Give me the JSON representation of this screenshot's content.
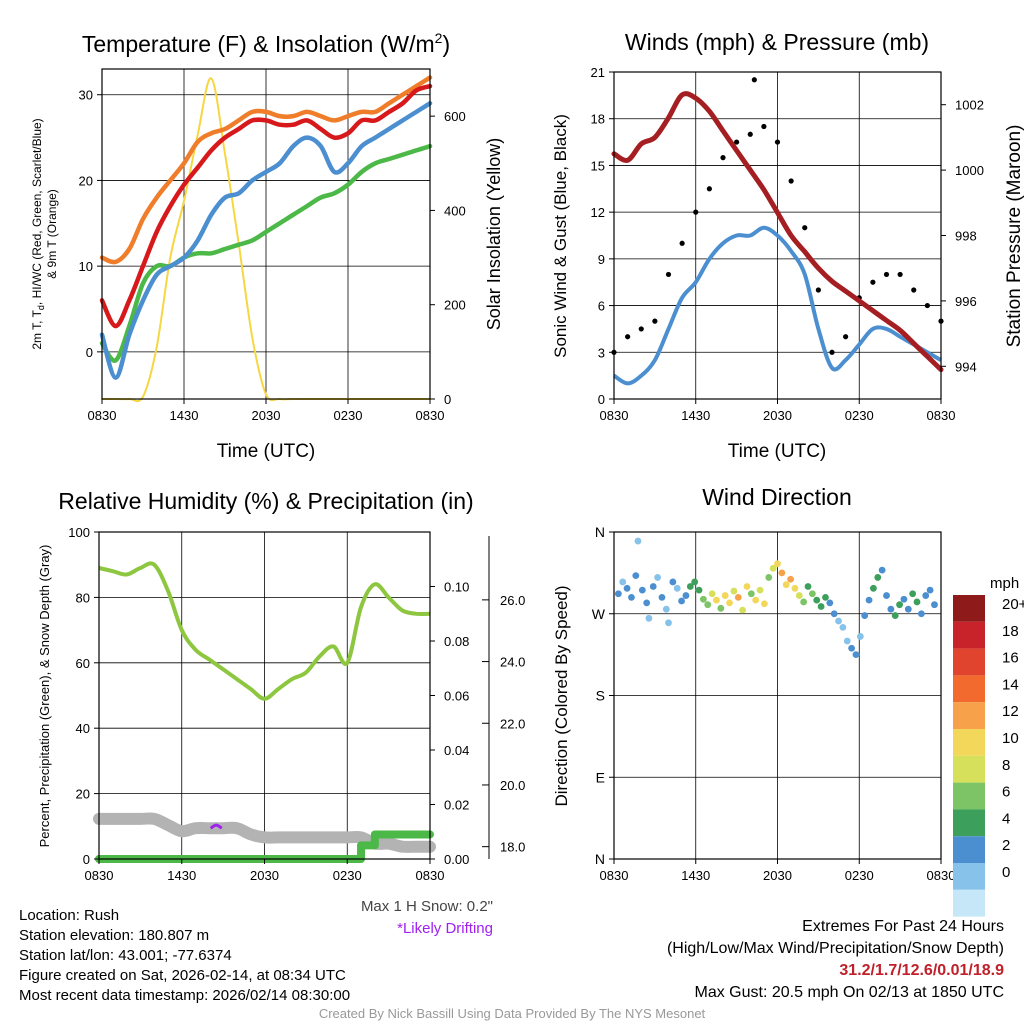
{
  "panels": {
    "temp": {
      "title_prefix": "Temperature (F) & Insolation (W/m",
      "title_sup": "2",
      "title_suffix": ")",
      "ylabel_left_line1": "2m T, T",
      "ylabel_left_sub": "d",
      "ylabel_left_rest": ", HI/WC (Red, Green, Scarlet/Blue)",
      "ylabel_left_line2": "& 9m T (Orange)",
      "ylabel_right": "Solar Insolation (Yellow)",
      "xlabel": "Time (UTC)"
    },
    "winds": {
      "title": "Winds (mph) & Pressure (mb)",
      "ylabel_left": "Sonic Wind & Gust (Blue, Black)",
      "ylabel_right": "Station Pressure (Maroon)",
      "xlabel": "Time (UTC)"
    },
    "rh": {
      "title": "Relative Humidity (%) & Precipitation (in)",
      "ylabel_left": "Percent, Precipitation (Green), & Snow Depth (Gray)"
    },
    "wdir": {
      "title": "Wind Direction",
      "ylabel": "Direction (Colored By Speed)",
      "legend_title": "mph"
    }
  },
  "chart_data": [
    {
      "type": "line",
      "name": "temperature_insolation",
      "x_tick_labels": [
        "0830",
        "1430",
        "2030",
        "0230",
        "0830"
      ],
      "x": [
        0,
        1,
        2,
        3,
        4,
        5,
        6,
        7,
        8,
        9,
        10,
        11,
        12,
        13,
        14,
        15,
        16,
        17,
        18,
        19,
        20,
        21,
        22,
        23,
        24
      ],
      "ylim": [
        -5.5,
        33
      ],
      "y_ticks": [
        0,
        10,
        20,
        30
      ],
      "y2lim": [
        0,
        700
      ],
      "y2_ticks": [
        0,
        200,
        400,
        600
      ],
      "series": [
        {
          "name": "9m T",
          "color": "#f07d2a",
          "values": [
            11,
            10.5,
            12,
            15.5,
            18,
            20,
            22,
            24.5,
            25.5,
            26,
            27,
            28,
            28,
            27.5,
            27.5,
            28,
            27.5,
            27,
            27.5,
            28,
            28,
            29,
            30,
            31,
            32
          ]
        },
        {
          "name": "2m T",
          "color": "#d7191c",
          "values": [
            6,
            3,
            6,
            10,
            14,
            17,
            19.5,
            21.5,
            23.5,
            25,
            26,
            27,
            27,
            26.5,
            26.5,
            27,
            26,
            25,
            25.5,
            27,
            27,
            28,
            29,
            30.5,
            31
          ]
        },
        {
          "name": "Wind chill",
          "color": "#4b8fd0",
          "values": [
            2,
            -3,
            2,
            6,
            9,
            10,
            11,
            13,
            16,
            18,
            18.5,
            20,
            21,
            22,
            24,
            25,
            24,
            21,
            22,
            24,
            25,
            26,
            27,
            28,
            29
          ]
        },
        {
          "name": "Dewpoint",
          "color": "#4cb848",
          "values": [
            1,
            -1,
            3,
            8,
            10,
            10,
            11,
            11.5,
            11.5,
            12,
            12.5,
            13,
            14,
            15,
            16,
            17,
            18,
            18.5,
            19.5,
            21,
            22,
            22.5,
            23,
            23.5,
            24
          ]
        },
        {
          "name": "Solar insolation",
          "color": "#f5d742",
          "axis": "right",
          "values": [
            0,
            0,
            0,
            5,
            110,
            300,
            420,
            560,
            680,
            520,
            330,
            130,
            10,
            0,
            0,
            0,
            0,
            0,
            0,
            0,
            0,
            0,
            0,
            0,
            0
          ]
        }
      ]
    },
    {
      "type": "line",
      "name": "winds_pressure",
      "x_tick_labels": [
        "0830",
        "1430",
        "2030",
        "0230",
        "0830"
      ],
      "x": [
        0,
        1,
        2,
        3,
        4,
        5,
        6,
        7,
        8,
        9,
        10,
        11,
        12,
        13,
        14,
        15,
        16,
        17,
        18,
        19,
        20,
        21,
        22,
        23,
        24
      ],
      "ylim": [
        0,
        21
      ],
      "y_ticks": [
        0,
        3,
        6,
        9,
        12,
        15,
        18,
        21
      ],
      "y2lim": [
        993,
        1003
      ],
      "y2_ticks": [
        994,
        996,
        998,
        1000,
        1002
      ],
      "series": [
        {
          "name": "Sonic wind",
          "color": "#4b8fd0",
          "values": [
            1.5,
            1,
            1.5,
            2.5,
            4.5,
            6.5,
            7.5,
            9,
            10,
            10.5,
            10.5,
            11,
            10.5,
            9.5,
            8,
            4.5,
            2,
            2.5,
            3.5,
            4.5,
            4.5,
            4,
            3.5,
            3,
            2.5
          ]
        },
        {
          "name": "Gust",
          "color": "#000000",
          "values": [
            3,
            4,
            4.5,
            5,
            8,
            10,
            12,
            13.5,
            15.5,
            16.5,
            17,
            17.5,
            16.5,
            14,
            11,
            7,
            3,
            4,
            6.5,
            7.5,
            8,
            8,
            7,
            6,
            5
          ]
        },
        {
          "name": "Station pressure",
          "color": "#a51e22",
          "axis": "right",
          "values": [
            1000.5,
            1000.3,
            1000.8,
            1001,
            1001.6,
            1002.3,
            1002.2,
            1001.8,
            1001.2,
            1000.6,
            1000,
            999.4,
            998.7,
            998,
            997.5,
            997,
            996.6,
            996.3,
            996,
            995.7,
            995.4,
            995.1,
            994.7,
            994.3,
            993.9
          ]
        }
      ],
      "extreme_gust": {
        "label": "20.5",
        "value": 20.5
      }
    },
    {
      "type": "line",
      "name": "rh_precip_snow",
      "x_tick_labels": [
        "0830",
        "1430",
        "2030",
        "0230",
        "0830"
      ],
      "x": [
        0,
        1,
        2,
        3,
        4,
        5,
        6,
        7,
        8,
        9,
        10,
        11,
        12,
        13,
        14,
        15,
        16,
        17,
        18,
        19,
        20,
        21,
        22,
        23,
        24
      ],
      "ylim": [
        0,
        100
      ],
      "y_ticks": [
        0,
        20,
        40,
        60,
        80,
        100
      ],
      "y2lim": [
        0,
        0.12
      ],
      "y2_tick_labels": [
        "0.00",
        "0.02",
        "0.04",
        "0.06",
        "0.08",
        "0.10"
      ],
      "y2_ticks": [
        0,
        0.02,
        0.04,
        0.06,
        0.08,
        0.1
      ],
      "y3lim": [
        17.6,
        28.2
      ],
      "y3_tick_labels": [
        "18.0",
        "20.0",
        "22.0",
        "24.0",
        "26.0"
      ],
      "y3_ticks": [
        18,
        20,
        22,
        24,
        26
      ],
      "series": [
        {
          "name": "Relative humidity",
          "color": "#8dc63f",
          "values": [
            89,
            88,
            87,
            89,
            90,
            82,
            70,
            64,
            61,
            58,
            55,
            52,
            49,
            52,
            55,
            57,
            62,
            65,
            60,
            77,
            84,
            80,
            76,
            75,
            75
          ]
        },
        {
          "name": "Precipitation",
          "color": "#4cb848",
          "axis": "y2",
          "values": [
            0,
            0,
            0,
            0,
            0,
            0,
            0,
            0,
            0,
            0,
            0,
            0,
            0,
            0,
            0,
            0,
            0,
            0,
            0,
            0.005,
            0.009,
            0.009,
            0.009,
            0.009,
            0.009
          ]
        },
        {
          "name": "Snow depth",
          "color": "#b3b3b3",
          "axis": "y3",
          "values": [
            18.9,
            18.9,
            18.9,
            18.9,
            18.9,
            18.7,
            18.5,
            18.6,
            18.6,
            18.6,
            18.6,
            18.4,
            18.3,
            18.3,
            18.3,
            18.3,
            18.3,
            18.3,
            18.3,
            18.3,
            18.1,
            18.1,
            18.0,
            18.0,
            18.0
          ]
        }
      ],
      "drifting": [
        {
          "x": 8.1,
          "y": 18.6
        },
        {
          "x": 8.5,
          "y": 18.7
        },
        {
          "x": 8.9,
          "y": 18.6
        }
      ]
    },
    {
      "type": "scatter",
      "name": "wind_direction",
      "x_tick_labels": [
        "0830",
        "1430",
        "2030",
        "0230",
        "0830"
      ],
      "y_tick_labels": [
        "N",
        "E",
        "S",
        "W",
        "N"
      ],
      "ylim": [
        0,
        360
      ],
      "legend_labels": [
        "20+",
        "18",
        "16",
        "14",
        "12",
        "10",
        "8",
        "6",
        "4",
        "2",
        "0"
      ],
      "legend_colors": [
        "#8e1a1a",
        "#c8232a",
        "#e0442e",
        "#f26a2e",
        "#f7a24a",
        "#f2d75a",
        "#d6e05a",
        "#7cc465",
        "#3d9f5c",
        "#4b8fd0",
        "#87c2ea",
        "#c6e7f7"
      ],
      "points": [
        {
          "x": 0.2,
          "dir": 292,
          "spd": 4
        },
        {
          "x": 0.4,
          "dir": 305,
          "spd": 2
        },
        {
          "x": 0.6,
          "dir": 298,
          "spd": 3
        },
        {
          "x": 0.8,
          "dir": 288,
          "spd": 4
        },
        {
          "x": 1.0,
          "dir": 312,
          "spd": 3
        },
        {
          "x": 1.1,
          "dir": 350,
          "spd": 1
        },
        {
          "x": 1.3,
          "dir": 296,
          "spd": 4
        },
        {
          "x": 1.5,
          "dir": 282,
          "spd": 3
        },
        {
          "x": 1.6,
          "dir": 265,
          "spd": 1
        },
        {
          "x": 1.8,
          "dir": 300,
          "spd": 4
        },
        {
          "x": 2.0,
          "dir": 310,
          "spd": 2
        },
        {
          "x": 2.2,
          "dir": 288,
          "spd": 3
        },
        {
          "x": 2.4,
          "dir": 275,
          "spd": 1
        },
        {
          "x": 2.5,
          "dir": 260,
          "spd": 2
        },
        {
          "x": 2.7,
          "dir": 305,
          "spd": 3
        },
        {
          "x": 2.9,
          "dir": 298,
          "spd": 2
        },
        {
          "x": 3.1,
          "dir": 284,
          "spd": 4
        },
        {
          "x": 3.3,
          "dir": 290,
          "spd": 3
        },
        {
          "x": 3.5,
          "dir": 300,
          "spd": 5
        },
        {
          "x": 3.7,
          "dir": 305,
          "spd": 6
        },
        {
          "x": 3.9,
          "dir": 296,
          "spd": 6
        },
        {
          "x": 4.1,
          "dir": 286,
          "spd": 7
        },
        {
          "x": 4.3,
          "dir": 280,
          "spd": 8
        },
        {
          "x": 4.5,
          "dir": 292,
          "spd": 9
        },
        {
          "x": 4.7,
          "dir": 285,
          "spd": 10
        },
        {
          "x": 4.9,
          "dir": 276,
          "spd": 8
        },
        {
          "x": 5.1,
          "dir": 290,
          "spd": 10
        },
        {
          "x": 5.3,
          "dir": 282,
          "spd": 11
        },
        {
          "x": 5.5,
          "dir": 295,
          "spd": 9
        },
        {
          "x": 5.7,
          "dir": 288,
          "spd": 12
        },
        {
          "x": 5.9,
          "dir": 274,
          "spd": 9
        },
        {
          "x": 6.1,
          "dir": 300,
          "spd": 10
        },
        {
          "x": 6.3,
          "dir": 292,
          "spd": 8
        },
        {
          "x": 6.5,
          "dir": 285,
          "spd": 11
        },
        {
          "x": 6.7,
          "dir": 296,
          "spd": 9
        },
        {
          "x": 6.9,
          "dir": 281,
          "spd": 10
        },
        {
          "x": 7.1,
          "dir": 310,
          "spd": 7
        },
        {
          "x": 7.3,
          "dir": 320,
          "spd": 9
        },
        {
          "x": 7.5,
          "dir": 325,
          "spd": 10
        },
        {
          "x": 7.7,
          "dir": 315,
          "spd": 12
        },
        {
          "x": 7.9,
          "dir": 302,
          "spd": 10
        },
        {
          "x": 8.1,
          "dir": 308,
          "spd": 13
        },
        {
          "x": 8.3,
          "dir": 298,
          "spd": 11
        },
        {
          "x": 8.5,
          "dir": 290,
          "spd": 9
        },
        {
          "x": 8.7,
          "dir": 283,
          "spd": 8
        },
        {
          "x": 8.9,
          "dir": 300,
          "spd": 6
        },
        {
          "x": 9.1,
          "dir": 292,
          "spd": 7
        },
        {
          "x": 9.3,
          "dir": 285,
          "spd": 5
        },
        {
          "x": 9.5,
          "dir": 278,
          "spd": 6
        },
        {
          "x": 9.7,
          "dir": 288,
          "spd": 5
        },
        {
          "x": 9.9,
          "dir": 282,
          "spd": 4
        },
        {
          "x": 10.1,
          "dir": 270,
          "spd": 3
        },
        {
          "x": 10.3,
          "dir": 262,
          "spd": 2
        },
        {
          "x": 10.5,
          "dir": 255,
          "spd": 2
        },
        {
          "x": 10.7,
          "dir": 240,
          "spd": 2
        },
        {
          "x": 10.9,
          "dir": 232,
          "spd": 3
        },
        {
          "x": 11.1,
          "dir": 225,
          "spd": 3
        },
        {
          "x": 11.3,
          "dir": 245,
          "spd": 2
        },
        {
          "x": 11.5,
          "dir": 268,
          "spd": 3
        },
        {
          "x": 11.7,
          "dir": 285,
          "spd": 4
        },
        {
          "x": 11.9,
          "dir": 298,
          "spd": 5
        },
        {
          "x": 12.1,
          "dir": 310,
          "spd": 6
        },
        {
          "x": 12.3,
          "dir": 318,
          "spd": 4
        },
        {
          "x": 12.5,
          "dir": 290,
          "spd": 3
        },
        {
          "x": 12.7,
          "dir": 275,
          "spd": 4
        },
        {
          "x": 12.9,
          "dir": 268,
          "spd": 6
        },
        {
          "x": 13.1,
          "dir": 280,
          "spd": 5
        },
        {
          "x": 13.3,
          "dir": 286,
          "spd": 4
        },
        {
          "x": 13.5,
          "dir": 275,
          "spd": 3
        },
        {
          "x": 13.7,
          "dir": 292,
          "spd": 5
        },
        {
          "x": 13.9,
          "dir": 283,
          "spd": 6
        },
        {
          "x": 14.1,
          "dir": 270,
          "spd": 4
        },
        {
          "x": 14.3,
          "dir": 290,
          "spd": 3
        },
        {
          "x": 14.5,
          "dir": 296,
          "spd": 4
        },
        {
          "x": 14.7,
          "dir": 280,
          "spd": 3
        }
      ]
    }
  ],
  "extra_labels": {
    "snow_note": "Max 1 H Snow: 0.2\"",
    "drifting_note": "*Likely Drifting"
  },
  "info": {
    "location": "Location: Rush",
    "elevation": "Station elevation: 180.807 m",
    "latlon": "Station lat/lon: 43.001; -77.6374",
    "created": "Figure created on Sat, 2026-02-14, at 08:34 UTC",
    "recent": "Most recent data timestamp: 2026/02/14 08:30:00"
  },
  "extremes": {
    "heading": "Extremes For Past 24 Hours",
    "subheading": "(High/Low/Max Wind/Precipitation/Snow Depth)",
    "values": "31.2/1.7/12.6/0.01/18.9",
    "max_gust": "Max Gust: 20.5 mph On 02/13 at 1850 UTC"
  },
  "credit": "Created By Nick Bassill Using Data Provided By The NYS Mesonet"
}
